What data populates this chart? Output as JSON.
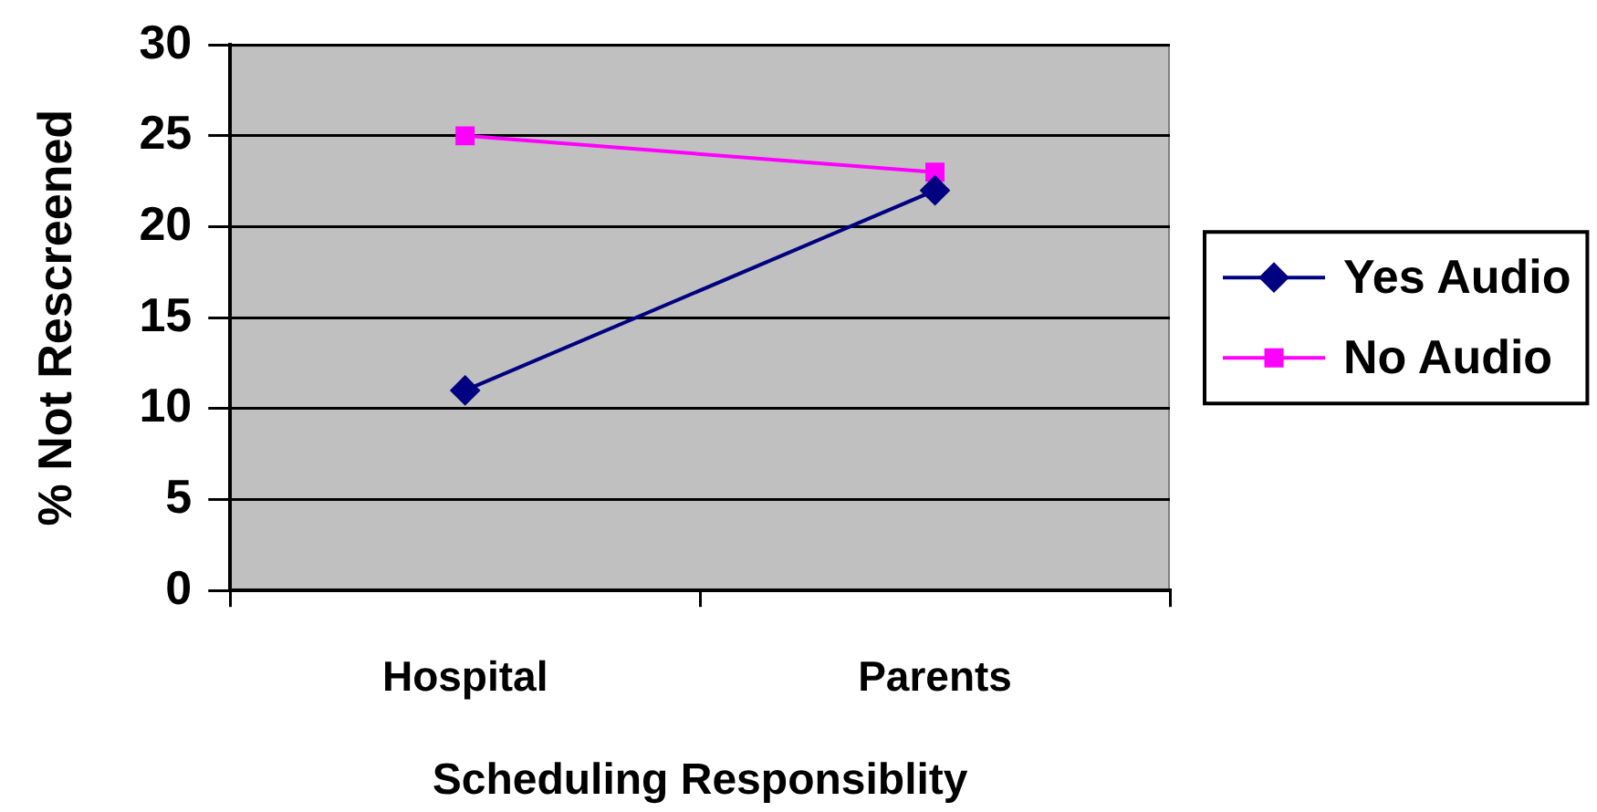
{
  "chart_data": {
    "type": "line",
    "xlabel": "Scheduling Responsiblity",
    "ylabel": "% Not Rescreened",
    "categories": [
      "Hospital",
      "Parents"
    ],
    "series": [
      {
        "name": "Yes Audio",
        "color": "#000080",
        "marker": "diamond",
        "values": [
          11,
          22
        ]
      },
      {
        "name": "No Audio",
        "color": "#ff00ff",
        "marker": "square",
        "values": [
          25,
          23
        ]
      }
    ],
    "ylim": [
      0,
      30
    ],
    "yticks": [
      0,
      5,
      10,
      15,
      20,
      25,
      30
    ],
    "grid": "y",
    "legend": "right"
  }
}
